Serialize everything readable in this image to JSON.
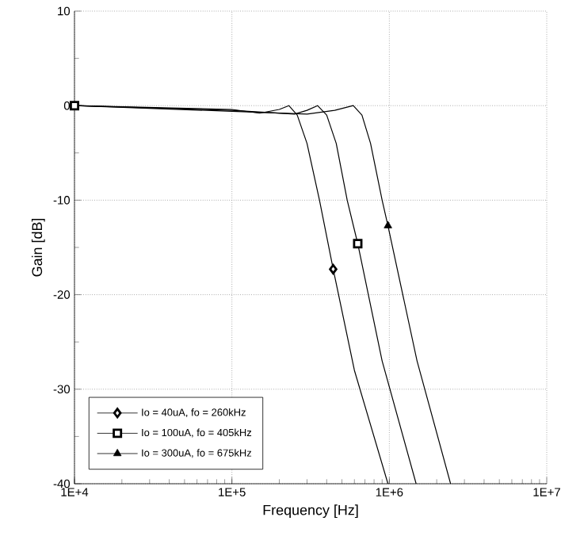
{
  "chart_data": {
    "type": "line",
    "xlabel": "Frequency [Hz]",
    "ylabel": "Gain [dB]",
    "log": "x",
    "xlim": [
      10000,
      10000000
    ],
    "ylim": [
      -40,
      10
    ],
    "xticks": [
      {
        "value": 10000,
        "label": "1E+4"
      },
      {
        "value": 100000,
        "label": "1E+5"
      },
      {
        "value": 1000000,
        "label": "1E+6"
      },
      {
        "value": 10000000,
        "label": "1E+7"
      }
    ],
    "yticks": [
      -40,
      -30,
      -20,
      -10,
      0,
      10
    ],
    "grid": true,
    "legend": "bottom left",
    "series": [
      {
        "color": "#000000",
        "x": [
          10000,
          100000,
          150000,
          200000,
          230000,
          260000,
          300000,
          360000,
          440000,
          600000,
          980000
        ],
        "values": [
          0,
          -0.4,
          -0.8,
          -0.4,
          0,
          -1,
          -4,
          -10,
          -17.3,
          -28,
          -40
        ]
      },
      {
        "color": "#000000",
        "x": [
          10000,
          100000,
          250000,
          300000,
          350000,
          400000,
          460000,
          540000,
          630000,
          900000,
          1480000
        ],
        "values": [
          0,
          -0.5,
          -0.9,
          -0.5,
          0,
          -1,
          -4,
          -10,
          -14.6,
          -27,
          -40
        ]
      },
      {
        "color": "#000000",
        "x": [
          10000,
          100000,
          300000,
          450000,
          590000,
          670000,
          760000,
          900000,
          980000,
          1500000,
          2450000
        ],
        "values": [
          0,
          -0.6,
          -0.9,
          -0.5,
          0,
          -1,
          -4,
          -10,
          -12.7,
          -27,
          -40
        ]
      },
      {
        "name": "Io =  40uA,  fo = 260kHz",
        "type": "scatter",
        "color": "#000000",
        "marker": "diamond",
        "x": [
          440000
        ],
        "values": [
          -17.3
        ]
      },
      {
        "name": "Io = 100uA, fo = 405kHz",
        "type": "scatter",
        "color": "#000000",
        "marker": "square",
        "x": [
          10000,
          630000
        ],
        "values": [
          0,
          -14.6
        ]
      },
      {
        "name": "Io = 300uA, fo = 675kHz",
        "type": "scatter",
        "color": "#000000",
        "marker": "triangle",
        "x": [
          980000
        ],
        "values": [
          -12.7
        ]
      }
    ]
  }
}
